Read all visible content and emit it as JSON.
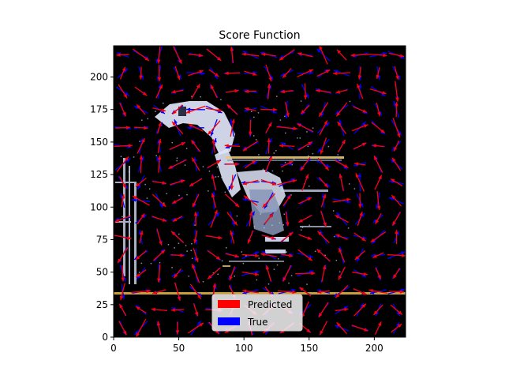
{
  "chart_data": {
    "type": "quiver",
    "title": "Score Function",
    "xlabel": "",
    "ylabel": "",
    "xlim": [
      0,
      224
    ],
    "ylim": [
      0,
      224
    ],
    "x_ticks": [
      0,
      50,
      100,
      150,
      200
    ],
    "y_ticks": [
      0,
      25,
      50,
      75,
      100,
      125,
      150,
      175,
      200
    ],
    "background": "black image of a robot arm reaching toward a table",
    "grid": false,
    "legend_placement": "lower center",
    "arrow_grid_step": 14,
    "series": [
      {
        "name": "Predicted",
        "color": "#ff0000"
      },
      {
        "name": "True",
        "color": "#0000ff"
      }
    ]
  }
}
